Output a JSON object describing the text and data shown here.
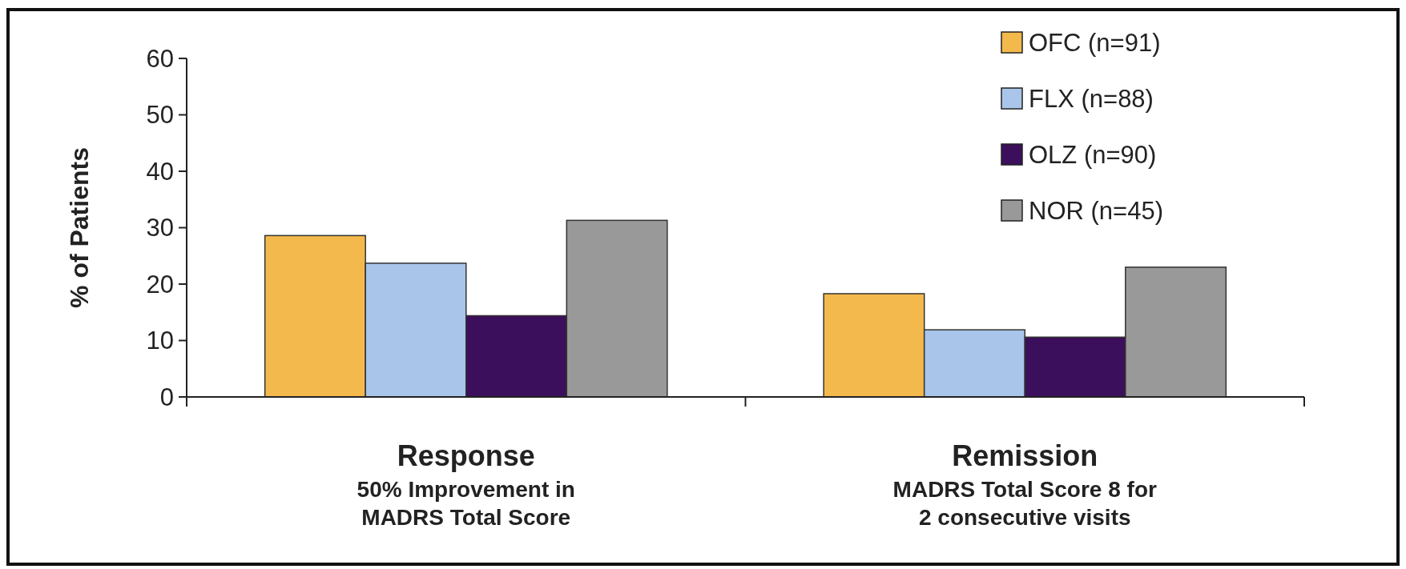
{
  "chart_data": {
    "type": "bar",
    "ylabel": "% of Patients",
    "categories": [
      "Response\n50% Improvement in\nMADRS Total Score",
      "Remission\nMADRS Total Score   8 for\n2 consecutive visits"
    ],
    "series": [
      {
        "name": "OFC (n=91)",
        "color": "#f4b94c",
        "values": [
          28.6,
          18.3
        ]
      },
      {
        "name": "FLX (n=88)",
        "color": "#a9c5ea",
        "values": [
          23.7,
          11.9
        ]
      },
      {
        "name": "OLZ (n=90)",
        "color": "#3c0f5c",
        "values": [
          14.4,
          10.6
        ]
      },
      {
        "name": "NOR (n=45)",
        "color": "#999999",
        "values": [
          31.3,
          23.0
        ]
      }
    ],
    "ylim": [
      0,
      60
    ],
    "yticks": [
      0,
      10,
      20,
      30,
      40,
      50,
      60
    ],
    "grid": false,
    "legend": "top right"
  }
}
